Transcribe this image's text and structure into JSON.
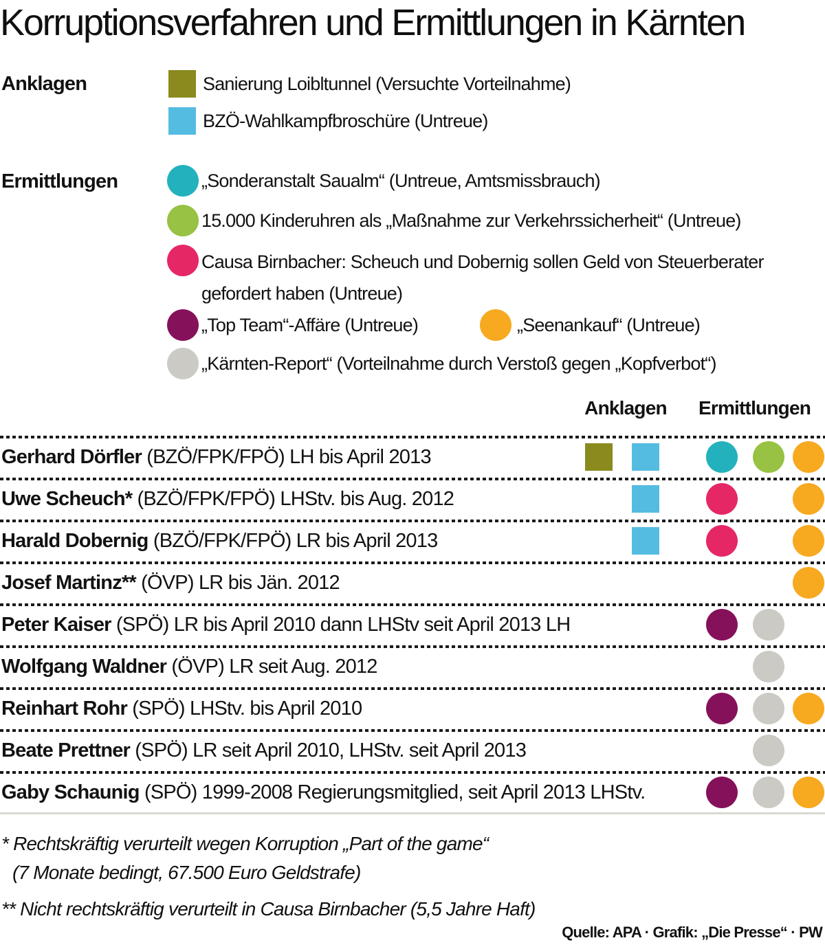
{
  "title": "Korruptionsverfahren und Ermittlungen in Kärnten",
  "colors": {
    "olive": "#8a8a1e",
    "blue": "#55bce1",
    "teal": "#23b2bd",
    "green": "#97c243",
    "pink": "#e52765",
    "maroon": "#85115b",
    "orange": "#f7a920",
    "gray": "#cbcac4"
  },
  "legend": {
    "anklagen_label": "Anklagen",
    "ermittlungen_label": "Ermittlungen",
    "items": [
      {
        "id": "loibltunnel",
        "shape": "square",
        "color_key": "olive",
        "label": "Sanierung Loibltunnel (Versuchte Vorteilnahme)"
      },
      {
        "id": "wahlkampfbroschuere",
        "shape": "square",
        "color_key": "blue",
        "label": "BZÖ-Wahlkampfbroschüre (Untreue)"
      },
      {
        "id": "saualm",
        "shape": "circle",
        "color_key": "teal",
        "label": "„Sonderanstalt Saualm“ (Untreue, Amtsmissbrauch)"
      },
      {
        "id": "kinderuhren",
        "shape": "circle",
        "color_key": "green",
        "label": "15.000 Kinderuhren als „Maßnahme zur Verkehrssicherheit“ (Untreue)"
      },
      {
        "id": "birnbacher",
        "shape": "circle",
        "color_key": "pink",
        "label": "Causa Birnbacher: Scheuch und Dobernig sollen Geld von Steuerberater gefordert haben (Untreue)"
      },
      {
        "id": "topteam",
        "shape": "circle",
        "color_key": "maroon",
        "label": "„Top Team“-Affäre (Untreue)"
      },
      {
        "id": "seenankauf",
        "shape": "circle",
        "color_key": "orange",
        "label": "„Seenankauf“ (Untreue)"
      },
      {
        "id": "kaernten-report",
        "shape": "circle",
        "color_key": "gray",
        "label": "„Kärnten-Report“ (Vorteilnahme durch Verstoß gegen „Kopfverbot“)"
      }
    ]
  },
  "table": {
    "anklagen_header": "Anklagen",
    "ermittlungen_header": "Ermittlungen",
    "rows": [
      {
        "name": "Gerhard Dörfler",
        "desc": "(BZÖ/FPK/FPÖ) LH bis April 2013",
        "squares": [
          "olive",
          "blue"
        ],
        "circles": [
          "teal",
          "green",
          "orange"
        ]
      },
      {
        "name": "Uwe Scheuch*",
        "desc": "(BZÖ/FPK/FPÖ) LHStv. bis Aug. 2012",
        "squares": [
          null,
          "blue"
        ],
        "circles": [
          "pink",
          null,
          "orange"
        ]
      },
      {
        "name": "Harald Dobernig",
        "desc": "(BZÖ/FPK/FPÖ) LR bis April 2013",
        "squares": [
          null,
          "blue"
        ],
        "circles": [
          "pink",
          null,
          "orange"
        ]
      },
      {
        "name": "Josef Martinz**",
        "desc": "(ÖVP) LR bis Jän. 2012",
        "squares": [
          null,
          null
        ],
        "circles": [
          null,
          null,
          "orange"
        ]
      },
      {
        "name": "Peter Kaiser",
        "desc": "(SPÖ) LR bis April 2010 dann LHStv seit April 2013 LH",
        "squares": [
          null,
          null
        ],
        "circles": [
          "maroon",
          "gray",
          null
        ]
      },
      {
        "name": "Wolfgang Waldner",
        "desc": "(ÖVP) LR seit Aug. 2012",
        "squares": [
          null,
          null
        ],
        "circles": [
          null,
          "gray",
          null
        ]
      },
      {
        "name": "Reinhart Rohr",
        "desc": "(SPÖ) LHStv. bis April 2010",
        "squares": [
          null,
          null
        ],
        "circles": [
          "maroon",
          "gray",
          "orange"
        ]
      },
      {
        "name": "Beate Prettner",
        "desc": "(SPÖ) LR seit April 2010, LHStv. seit April 2013",
        "squares": [
          null,
          null
        ],
        "circles": [
          null,
          "gray",
          null
        ]
      },
      {
        "name": "Gaby Schaunig",
        "desc": "(SPÖ) 1999-2008 Regierungsmitglied, seit April 2013 LHStv.",
        "squares": [
          null,
          null
        ],
        "circles": [
          "maroon",
          "gray",
          "orange"
        ]
      }
    ]
  },
  "footnotes": {
    "fn1_line1": "* Rechtskräftig verurteilt wegen Korruption „Part of the game“",
    "fn1_line2": "(7 Monate bedingt, 67.500 Euro Geldstrafe)",
    "fn2": "** Nicht rechtskräftig verurteilt in Causa Birnbacher (5,5 Jahre Haft)"
  },
  "source": "Quelle: APA · Grafik: „Die Presse“ · PW",
  "chart_data": {
    "type": "table",
    "title": "Korruptionsverfahren und Ermittlungen in Kärnten",
    "columns": [
      "Anklagen",
      "Ermittlungen"
    ],
    "legend_position": "top",
    "cases": {
      "anklagen": [
        "Sanierung Loibltunnel (Versuchte Vorteilnahme)",
        "BZÖ-Wahlkampfbroschüre (Untreue)"
      ],
      "ermittlungen": [
        "„Sonderanstalt Saualm“ (Untreue, Amtsmissbrauch)",
        "15.000 Kinderuhren als „Maßnahme zur Verkehrssicherheit“ (Untreue)",
        "Causa Birnbacher: Scheuch und Dobernig sollen Geld von Steuerberater gefordert haben (Untreue)",
        "„Top Team“-Affäre (Untreue)",
        "„Seenankauf“ (Untreue)",
        "„Kärnten-Report“ (Vorteilnahme durch Verstoß gegen „Kopfverbot“)"
      ]
    },
    "rows": [
      {
        "person": "Gerhard Dörfler",
        "role": "(BZÖ/FPK/FPÖ) LH bis April 2013",
        "anklagen": [
          "Sanierung Loibltunnel",
          "BZÖ-Wahlkampfbroschüre"
        ],
        "ermittlungen": [
          "Sonderanstalt Saualm",
          "15.000 Kinderuhren",
          "Seenankauf"
        ]
      },
      {
        "person": "Uwe Scheuch*",
        "role": "(BZÖ/FPK/FPÖ) LHStv. bis Aug. 2012",
        "anklagen": [
          "BZÖ-Wahlkampfbroschüre"
        ],
        "ermittlungen": [
          "Causa Birnbacher",
          "Seenankauf"
        ]
      },
      {
        "person": "Harald Dobernig",
        "role": "(BZÖ/FPK/FPÖ) LR bis April 2013",
        "anklagen": [
          "BZÖ-Wahlkampfbroschüre"
        ],
        "ermittlungen": [
          "Causa Birnbacher",
          "Seenankauf"
        ]
      },
      {
        "person": "Josef Martinz**",
        "role": "(ÖVP) LR bis Jän. 2012",
        "anklagen": [],
        "ermittlungen": [
          "Seenankauf"
        ]
      },
      {
        "person": "Peter Kaiser",
        "role": "(SPÖ) LR bis April 2010 dann LHStv seit April 2013 LH",
        "anklagen": [],
        "ermittlungen": [
          "Top Team-Affäre",
          "Kärnten-Report"
        ]
      },
      {
        "person": "Wolfgang Waldner",
        "role": "(ÖVP) LR seit Aug. 2012",
        "anklagen": [],
        "ermittlungen": [
          "Kärnten-Report"
        ]
      },
      {
        "person": "Reinhart Rohr",
        "role": "(SPÖ) LHStv. bis April 2010",
        "anklagen": [],
        "ermittlungen": [
          "Top Team-Affäre",
          "Kärnten-Report",
          "Seenankauf"
        ]
      },
      {
        "person": "Beate Prettner",
        "role": "(SPÖ) LR seit April 2010, LHStv. seit April 2013",
        "anklagen": [],
        "ermittlungen": [
          "Kärnten-Report"
        ]
      },
      {
        "person": "Gaby Schaunig",
        "role": "(SPÖ) 1999-2008 Regierungsmitglied, seit April 2013 LHStv.",
        "anklagen": [],
        "ermittlungen": [
          "Top Team-Affäre",
          "Kärnten-Report",
          "Seenankauf"
        ]
      }
    ]
  }
}
